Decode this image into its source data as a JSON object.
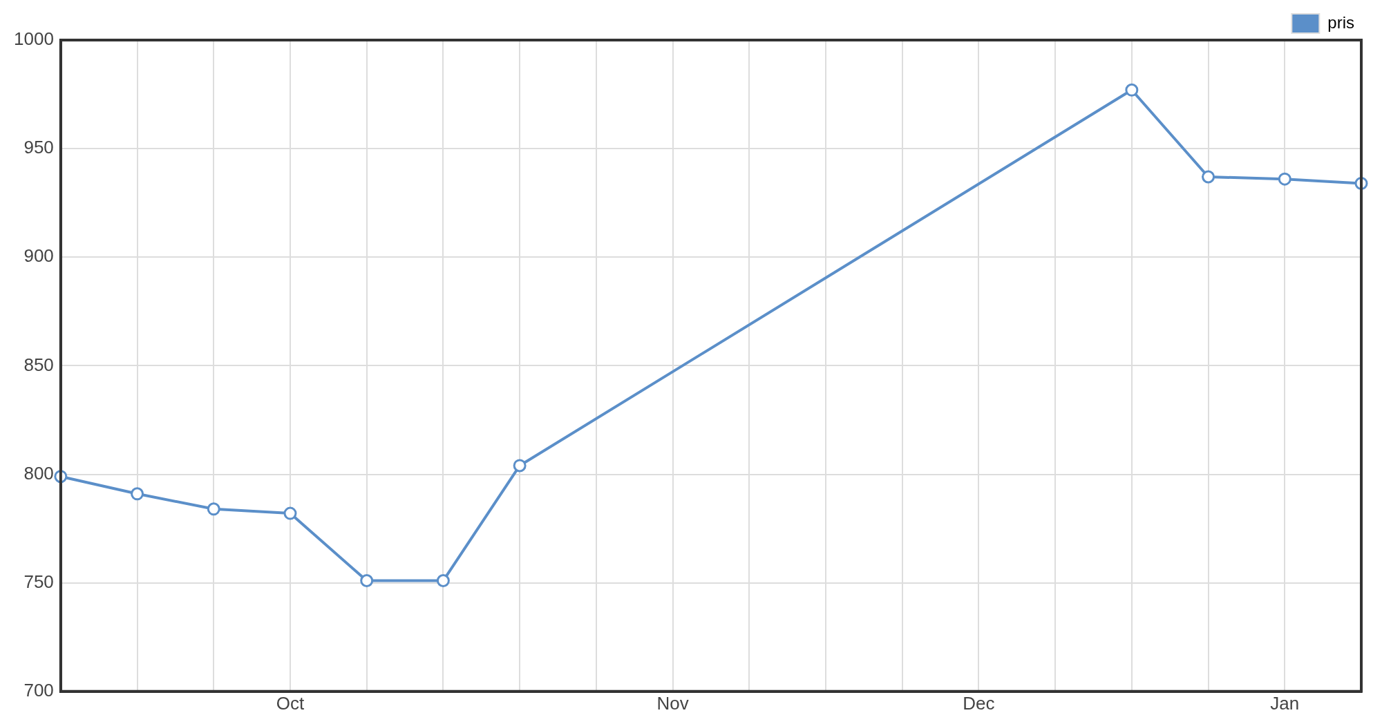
{
  "chart_data": {
    "type": "line",
    "categories": [
      null,
      null,
      null,
      "Oct",
      null,
      null,
      null,
      null,
      "Nov",
      null,
      null,
      null,
      "Dec",
      null,
      null,
      null,
      "Jan",
      null
    ],
    "series": [
      {
        "name": "pris",
        "color": "#5b8fc9",
        "values": [
          799,
          791,
          784,
          782,
          751,
          751,
          804,
          null,
          null,
          null,
          null,
          null,
          null,
          null,
          977,
          937,
          936,
          934
        ]
      }
    ],
    "ylim": [
      700,
      1000
    ],
    "yticks": [
      700,
      750,
      800,
      850,
      900,
      950,
      1000
    ],
    "grid": true,
    "legend": "top right",
    "marker": "circle",
    "line_style": "solid"
  }
}
